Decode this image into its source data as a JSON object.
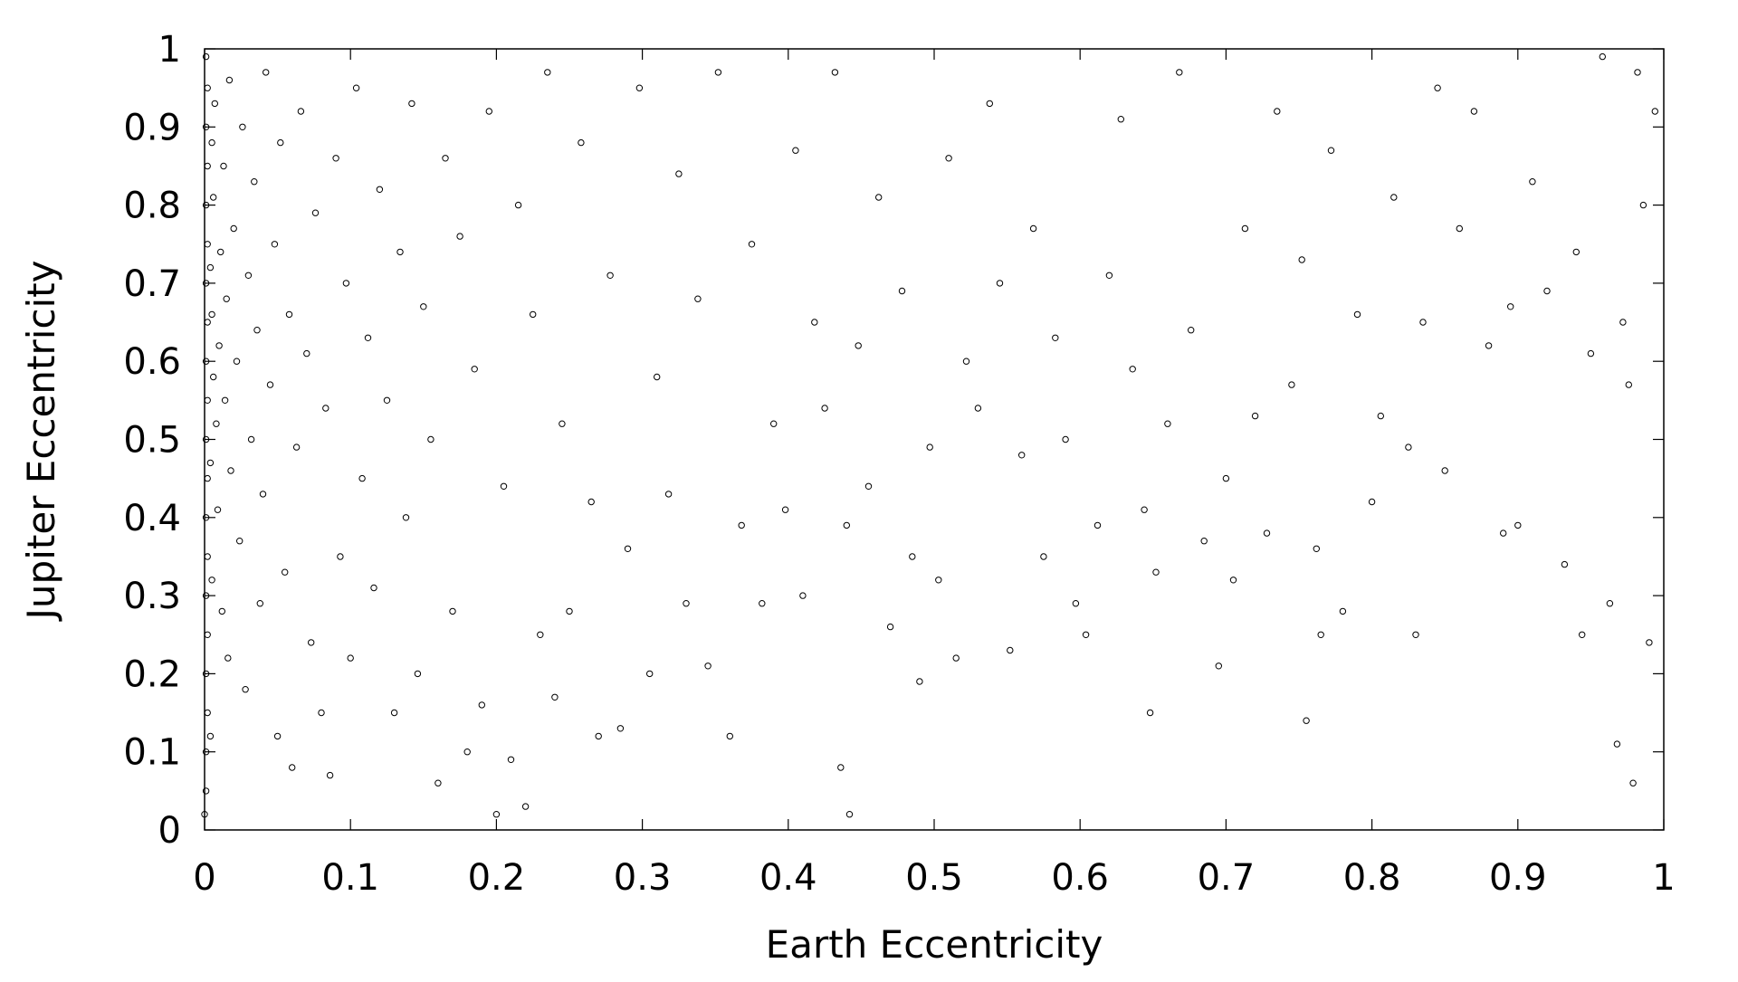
{
  "chart_data": {
    "type": "scatter",
    "title": "",
    "xlabel": "Earth Eccentricity",
    "ylabel": "Jupiter Eccentricity",
    "xlim": [
      0,
      1
    ],
    "ylim": [
      0,
      1
    ],
    "xticks": [
      "0",
      "0.1",
      "0.2",
      "0.3",
      "0.4",
      "0.5",
      "0.6",
      "0.7",
      "0.8",
      "0.9",
      "1"
    ],
    "yticks": [
      "0",
      "0.1",
      "0.2",
      "0.3",
      "0.4",
      "0.5",
      "0.6",
      "0.7",
      "0.8",
      "0.9",
      "1"
    ],
    "grid": false,
    "legend": "none",
    "marker": "open-circle",
    "colors": {
      "marker": "#000000",
      "axes": "#000000",
      "background": "#ffffff"
    },
    "series": [
      {
        "points": [
          [
            0.0,
            0.02
          ],
          [
            0.001,
            0.05
          ],
          [
            0.001,
            0.1
          ],
          [
            0.002,
            0.15
          ],
          [
            0.001,
            0.2
          ],
          [
            0.002,
            0.25
          ],
          [
            0.001,
            0.3
          ],
          [
            0.002,
            0.35
          ],
          [
            0.001,
            0.4
          ],
          [
            0.002,
            0.45
          ],
          [
            0.001,
            0.5
          ],
          [
            0.002,
            0.55
          ],
          [
            0.001,
            0.6
          ],
          [
            0.002,
            0.65
          ],
          [
            0.001,
            0.7
          ],
          [
            0.002,
            0.75
          ],
          [
            0.001,
            0.8
          ],
          [
            0.002,
            0.85
          ],
          [
            0.001,
            0.9
          ],
          [
            0.002,
            0.95
          ],
          [
            0.001,
            0.99
          ],
          [
            0.004,
            0.12
          ],
          [
            0.005,
            0.32
          ],
          [
            0.004,
            0.47
          ],
          [
            0.006,
            0.58
          ],
          [
            0.005,
            0.66
          ],
          [
            0.004,
            0.72
          ],
          [
            0.006,
            0.81
          ],
          [
            0.005,
            0.88
          ],
          [
            0.007,
            0.93
          ],
          [
            0.008,
            0.52
          ],
          [
            0.009,
            0.41
          ],
          [
            0.01,
            0.62
          ],
          [
            0.011,
            0.74
          ],
          [
            0.012,
            0.28
          ],
          [
            0.013,
            0.85
          ],
          [
            0.014,
            0.55
          ],
          [
            0.015,
            0.68
          ],
          [
            0.016,
            0.22
          ],
          [
            0.017,
            0.96
          ],
          [
            0.018,
            0.46
          ],
          [
            0.02,
            0.77
          ],
          [
            0.022,
            0.6
          ],
          [
            0.024,
            0.37
          ],
          [
            0.026,
            0.9
          ],
          [
            0.028,
            0.18
          ],
          [
            0.03,
            0.71
          ],
          [
            0.032,
            0.5
          ],
          [
            0.034,
            0.83
          ],
          [
            0.036,
            0.64
          ],
          [
            0.038,
            0.29
          ],
          [
            0.04,
            0.43
          ],
          [
            0.042,
            0.97
          ],
          [
            0.045,
            0.57
          ],
          [
            0.048,
            0.75
          ],
          [
            0.05,
            0.12
          ],
          [
            0.052,
            0.88
          ],
          [
            0.055,
            0.33
          ],
          [
            0.058,
            0.66
          ],
          [
            0.06,
            0.08
          ],
          [
            0.063,
            0.49
          ],
          [
            0.066,
            0.92
          ],
          [
            0.07,
            0.61
          ],
          [
            0.073,
            0.24
          ],
          [
            0.076,
            0.79
          ],
          [
            0.08,
            0.15
          ],
          [
            0.083,
            0.54
          ],
          [
            0.086,
            0.07
          ],
          [
            0.09,
            0.86
          ],
          [
            0.093,
            0.35
          ],
          [
            0.097,
            0.7
          ],
          [
            0.1,
            0.22
          ],
          [
            0.104,
            0.95
          ],
          [
            0.108,
            0.45
          ],
          [
            0.112,
            0.63
          ],
          [
            0.116,
            0.31
          ],
          [
            0.12,
            0.82
          ],
          [
            0.125,
            0.55
          ],
          [
            0.13,
            0.15
          ],
          [
            0.134,
            0.74
          ],
          [
            0.138,
            0.4
          ],
          [
            0.142,
            0.93
          ],
          [
            0.146,
            0.2
          ],
          [
            0.15,
            0.67
          ],
          [
            0.155,
            0.5
          ],
          [
            0.16,
            0.06
          ],
          [
            0.165,
            0.86
          ],
          [
            0.17,
            0.28
          ],
          [
            0.175,
            0.76
          ],
          [
            0.18,
            0.1
          ],
          [
            0.185,
            0.59
          ],
          [
            0.19,
            0.16
          ],
          [
            0.195,
            0.92
          ],
          [
            0.2,
            0.02
          ],
          [
            0.205,
            0.44
          ],
          [
            0.21,
            0.09
          ],
          [
            0.215,
            0.8
          ],
          [
            0.22,
            0.03
          ],
          [
            0.225,
            0.66
          ],
          [
            0.23,
            0.25
          ],
          [
            0.235,
            0.97
          ],
          [
            0.24,
            0.17
          ],
          [
            0.245,
            0.52
          ],
          [
            0.25,
            0.28
          ],
          [
            0.258,
            0.88
          ],
          [
            0.265,
            0.42
          ],
          [
            0.27,
            0.12
          ],
          [
            0.278,
            0.71
          ],
          [
            0.285,
            0.13
          ],
          [
            0.29,
            0.36
          ],
          [
            0.298,
            0.95
          ],
          [
            0.305,
            0.2
          ],
          [
            0.31,
            0.58
          ],
          [
            0.318,
            0.43
          ],
          [
            0.325,
            0.84
          ],
          [
            0.33,
            0.29
          ],
          [
            0.338,
            0.68
          ],
          [
            0.345,
            0.21
          ],
          [
            0.352,
            0.97
          ],
          [
            0.36,
            0.12
          ],
          [
            0.368,
            0.39
          ],
          [
            0.375,
            0.75
          ],
          [
            0.382,
            0.29
          ],
          [
            0.39,
            0.52
          ],
          [
            0.398,
            0.41
          ],
          [
            0.405,
            0.87
          ],
          [
            0.41,
            0.3
          ],
          [
            0.418,
            0.65
          ],
          [
            0.425,
            0.54
          ],
          [
            0.432,
            0.97
          ],
          [
            0.436,
            0.08
          ],
          [
            0.44,
            0.39
          ],
          [
            0.442,
            0.02
          ],
          [
            0.448,
            0.62
          ],
          [
            0.455,
            0.44
          ],
          [
            0.462,
            0.81
          ],
          [
            0.47,
            0.26
          ],
          [
            0.478,
            0.69
          ],
          [
            0.485,
            0.35
          ],
          [
            0.49,
            0.19
          ],
          [
            0.497,
            0.49
          ],
          [
            0.503,
            0.32
          ],
          [
            0.51,
            0.86
          ],
          [
            0.515,
            0.22
          ],
          [
            0.522,
            0.6
          ],
          [
            0.53,
            0.54
          ],
          [
            0.538,
            0.93
          ],
          [
            0.545,
            0.7
          ],
          [
            0.552,
            0.23
          ],
          [
            0.56,
            0.48
          ],
          [
            0.568,
            0.77
          ],
          [
            0.575,
            0.35
          ],
          [
            0.583,
            0.63
          ],
          [
            0.59,
            0.5
          ],
          [
            0.597,
            0.29
          ],
          [
            0.604,
            0.25
          ],
          [
            0.612,
            0.39
          ],
          [
            0.62,
            0.71
          ],
          [
            0.628,
            0.91
          ],
          [
            0.636,
            0.59
          ],
          [
            0.644,
            0.41
          ],
          [
            0.648,
            0.15
          ],
          [
            0.652,
            0.33
          ],
          [
            0.66,
            0.52
          ],
          [
            0.668,
            0.97
          ],
          [
            0.676,
            0.64
          ],
          [
            0.685,
            0.37
          ],
          [
            0.695,
            0.21
          ],
          [
            0.7,
            0.45
          ],
          [
            0.705,
            0.32
          ],
          [
            0.713,
            0.77
          ],
          [
            0.72,
            0.53
          ],
          [
            0.728,
            0.38
          ],
          [
            0.735,
            0.92
          ],
          [
            0.745,
            0.57
          ],
          [
            0.752,
            0.73
          ],
          [
            0.755,
            0.14
          ],
          [
            0.762,
            0.36
          ],
          [
            0.765,
            0.25
          ],
          [
            0.772,
            0.87
          ],
          [
            0.78,
            0.28
          ],
          [
            0.79,
            0.66
          ],
          [
            0.8,
            0.42
          ],
          [
            0.806,
            0.53
          ],
          [
            0.815,
            0.81
          ],
          [
            0.825,
            0.49
          ],
          [
            0.83,
            0.25
          ],
          [
            0.835,
            0.65
          ],
          [
            0.845,
            0.95
          ],
          [
            0.85,
            0.46
          ],
          [
            0.86,
            0.77
          ],
          [
            0.87,
            0.92
          ],
          [
            0.88,
            0.62
          ],
          [
            0.89,
            0.38
          ],
          [
            0.895,
            0.67
          ],
          [
            0.9,
            0.39
          ],
          [
            0.91,
            0.83
          ],
          [
            0.92,
            0.69
          ],
          [
            0.932,
            0.34
          ],
          [
            0.94,
            0.74
          ],
          [
            0.944,
            0.25
          ],
          [
            0.95,
            0.61
          ],
          [
            0.958,
            0.99
          ],
          [
            0.963,
            0.29
          ],
          [
            0.968,
            0.11
          ],
          [
            0.972,
            0.65
          ],
          [
            0.976,
            0.57
          ],
          [
            0.979,
            0.06
          ],
          [
            0.982,
            0.97
          ],
          [
            0.986,
            0.8
          ],
          [
            0.99,
            0.24
          ],
          [
            0.994,
            0.92
          ]
        ]
      }
    ]
  }
}
